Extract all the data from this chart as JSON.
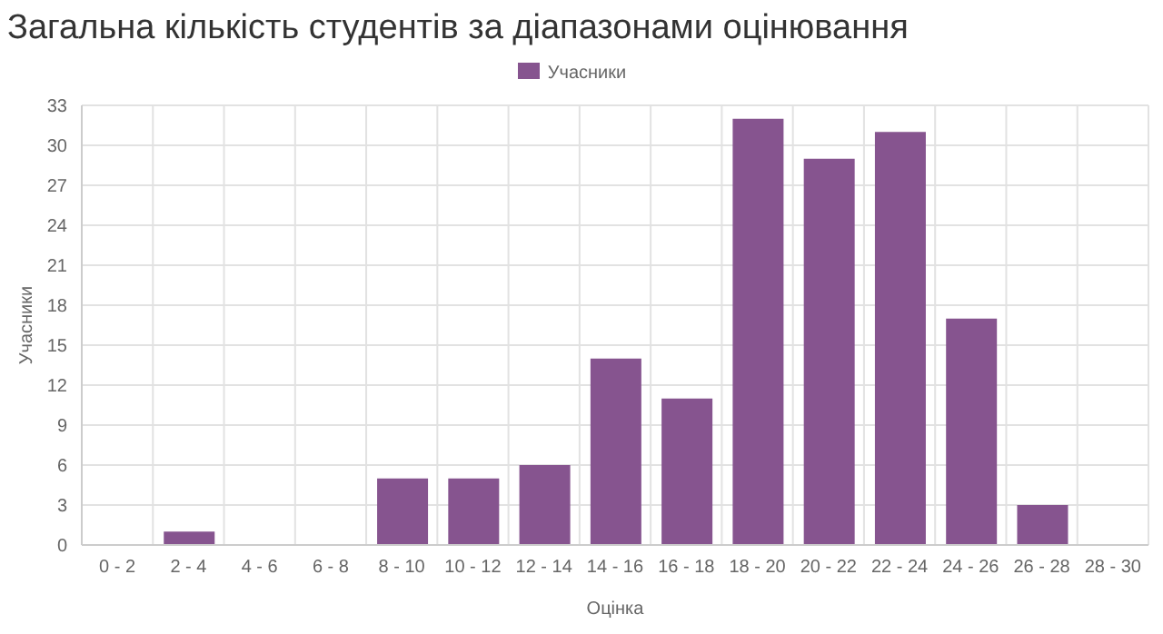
{
  "chart_data": {
    "type": "bar",
    "title": "Загальна кількість студентів за діапазонами оцінювання",
    "xlabel": "Оцінка",
    "ylabel": "Учасники",
    "categories": [
      "0 - 2",
      "2 - 4",
      "4 - 6",
      "6 - 8",
      "8 - 10",
      "10 - 12",
      "12 - 14",
      "14 - 16",
      "16 - 18",
      "18 - 20",
      "20 - 22",
      "22 - 24",
      "24 - 26",
      "26 - 28",
      "28 - 30"
    ],
    "series": [
      {
        "name": "Учасники",
        "color": "#86548f",
        "values": [
          0,
          1,
          0,
          0,
          5,
          5,
          6,
          14,
          11,
          32,
          29,
          31,
          17,
          3,
          0
        ]
      }
    ],
    "ylim": [
      0,
      33
    ],
    "yticks": [
      0,
      3,
      6,
      9,
      12,
      15,
      18,
      21,
      24,
      27,
      30,
      33
    ],
    "grid": true,
    "legend": "top"
  }
}
